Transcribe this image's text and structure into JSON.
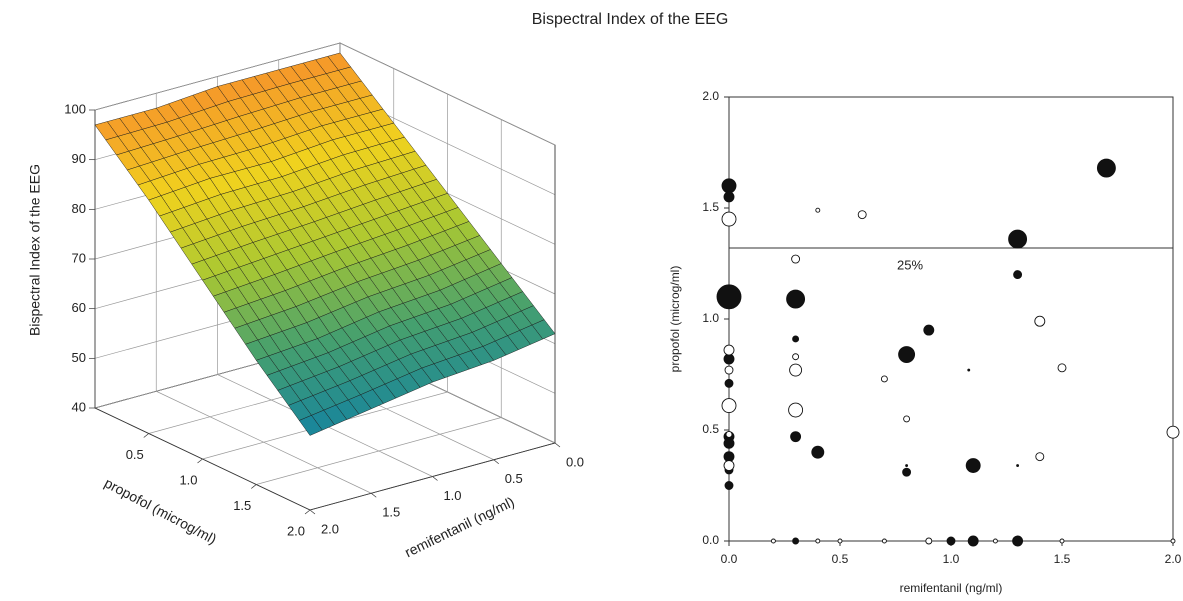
{
  "title": "Bispectral Index of the EEG",
  "chart_data": [
    {
      "type": "surface",
      "zlabel": "Bispectral Index of the EEG",
      "xlabel": "remifentanil (ng/ml)",
      "ylabel": "propofol (microg/ml)",
      "x": [
        0,
        0.5,
        1,
        1.5,
        2
      ],
      "y": [
        0,
        0.5,
        1,
        1.5,
        2
      ],
      "z": [
        [
          98,
          98,
          98,
          97,
          97
        ],
        [
          89,
          89,
          88,
          88,
          87
        ],
        [
          80,
          79,
          78,
          77,
          76
        ],
        [
          71,
          69,
          68,
          66,
          65
        ],
        [
          62,
          60,
          59,
          57,
          55
        ]
      ],
      "xlim": [
        0,
        2
      ],
      "ylim": [
        0,
        2
      ],
      "zlim": [
        40,
        100
      ],
      "xticks": [
        {
          "value": 0,
          "label": "0.0"
        },
        0.5,
        {
          "value": 1,
          "label": "1.0"
        },
        1.5,
        {
          "value": 2,
          "label": "2.0"
        }
      ],
      "yticks": [
        0.5,
        1.5,
        {
          "value": 1,
          "label": "1.0"
        },
        {
          "value": 2,
          "label": "2.0"
        }
      ],
      "zticks": [
        40,
        50,
        60,
        70,
        80,
        90,
        100
      ],
      "grid": true
    },
    {
      "type": "bubble",
      "xlabel": "remifentanil (ng/ml)",
      "ylabel": "propofol (microg/ml)",
      "xlim": [
        0,
        2
      ],
      "ylim": [
        0,
        2
      ],
      "xticks": [
        {
          "value": 0,
          "label": "0.0"
        },
        0.5,
        {
          "value": 1,
          "label": "1.0"
        },
        1.5,
        {
          "value": 2,
          "label": "2.0"
        }
      ],
      "yticks": [
        {
          "value": 0,
          "label": "0.0"
        },
        0.5,
        {
          "value": 1,
          "label": "1.0"
        },
        1.5,
        {
          "value": 2,
          "label": "2.0"
        }
      ],
      "hline": 1.32,
      "annotation": "25%",
      "series": [
        {
          "color": "#111111",
          "x": [
            0,
            0,
            0,
            0,
            0,
            0,
            0,
            0,
            0,
            0,
            0.3,
            0.3,
            0.3,
            0.4,
            0.8,
            0.9,
            0.8,
            1.1,
            1.3,
            1.3,
            1.7,
            1.08,
            0.8,
            1.3,
            0.3,
            1.0,
            1.1,
            1.3
          ],
          "values": [
            1.6,
            1.55,
            1.1,
            0.82,
            0.71,
            0.47,
            0.44,
            0.38,
            0.32,
            0.25,
            1.09,
            0.91,
            0.47,
            0.4,
            0.84,
            0.95,
            0.31,
            0.34,
            1.36,
            1.2,
            1.68,
            0.77,
            0.34,
            0.34,
            0,
            0,
            0,
            0
          ],
          "sizes": [
            7,
            5,
            12,
            5,
            4,
            5,
            5,
            5,
            4,
            4,
            9,
            3,
            5,
            6,
            8,
            5,
            4,
            7,
            9,
            4,
            9,
            1,
            1,
            1,
            3,
            4,
            5,
            5
          ]
        },
        {
          "color": "#ffffff",
          "x": [
            0,
            0,
            0,
            0,
            0,
            0,
            0.4,
            0.6,
            0.3,
            0.3,
            0.3,
            0.3,
            0.7,
            0.8,
            1.4,
            1.5,
            1.4,
            2.0,
            0.2,
            0.4,
            0.5,
            0.7,
            0.9,
            1.2,
            1.5,
            2.0
          ],
          "values": [
            1.45,
            0.86,
            0.77,
            0.61,
            0.48,
            0.34,
            1.49,
            1.47,
            1.27,
            0.83,
            0.77,
            0.59,
            0.73,
            0.55,
            0.99,
            0.78,
            0.38,
            0.49,
            0,
            0,
            0,
            0,
            0,
            0,
            0,
            0
          ],
          "sizes": [
            7,
            5,
            4,
            7,
            3,
            5,
            2,
            4,
            4,
            3,
            6,
            7,
            3,
            3,
            5,
            4,
            4,
            6,
            2,
            2,
            2,
            2,
            3,
            2,
            2,
            2
          ]
        }
      ]
    }
  ]
}
